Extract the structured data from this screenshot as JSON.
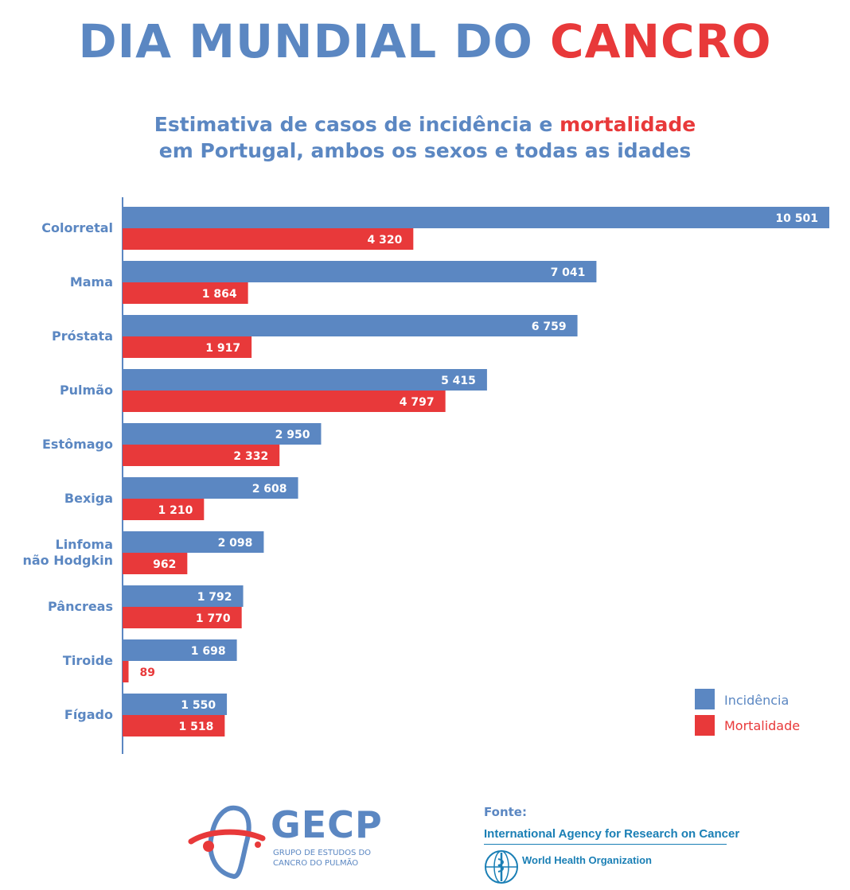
{
  "title": {
    "part1": "DIA MUNDIAL DO ",
    "part2": "CANCRO"
  },
  "subtitle": {
    "line1_a": "Estimativa de casos de incidência e ",
    "line1_b": "mortalidade",
    "line2": "em Portugal, ambos os sexos e todas as idades"
  },
  "colors": {
    "incidence": "#5b87c2",
    "mortality": "#e8393a",
    "axis": "#5b87c2"
  },
  "chart_data": {
    "type": "bar",
    "orientation": "horizontal",
    "title": "Estimativa de casos de incidência e mortalidade em Portugal, ambos os sexos e todas as idades",
    "categories": [
      "Colorretal",
      "Mama",
      "Próstata",
      "Pulmão",
      "Estômago",
      "Bexiga",
      "Linfoma não Hodgkin",
      "Pâncreas",
      "Tiroide",
      "Fígado"
    ],
    "category_lines": [
      [
        "Colorretal"
      ],
      [
        "Mama"
      ],
      [
        "Próstata"
      ],
      [
        "Pulmão"
      ],
      [
        "Estômago"
      ],
      [
        "Bexiga"
      ],
      [
        "Linfoma",
        "não Hodgkin"
      ],
      [
        "Pâncreas"
      ],
      [
        "Tiroide"
      ],
      [
        "Fígado"
      ]
    ],
    "series": [
      {
        "name": "Incidência",
        "values": [
          10501,
          7041,
          6759,
          5415,
          2950,
          2608,
          2098,
          1792,
          1698,
          1550
        ],
        "labels": [
          "10 501",
          "7 041",
          "6 759",
          "5 415",
          "2 950",
          "2 608",
          "2 098",
          "1 792",
          "1 698",
          "1 550"
        ]
      },
      {
        "name": "Mortalidade",
        "values": [
          4320,
          1864,
          1917,
          4797,
          2332,
          1210,
          962,
          1770,
          89,
          1518
        ],
        "labels": [
          "4 320",
          "1 864",
          "1 917",
          "4 797",
          "2 332",
          "1 210",
          "962",
          "1 770",
          "89",
          "1 518"
        ]
      }
    ],
    "xlim": [
      0,
      10501
    ],
    "grid": false,
    "legend": "bottom-right"
  },
  "footer": {
    "gecp_name": "GECP",
    "gecp_sub": "GRUPO DE ESTUDOS DO CANCRO DO PULMÃO",
    "fonte": "Fonte:",
    "iarc": "International Agency for Research on Cancer",
    "who": "World Health Organization",
    "who_icon": "who-emblem-icon"
  }
}
